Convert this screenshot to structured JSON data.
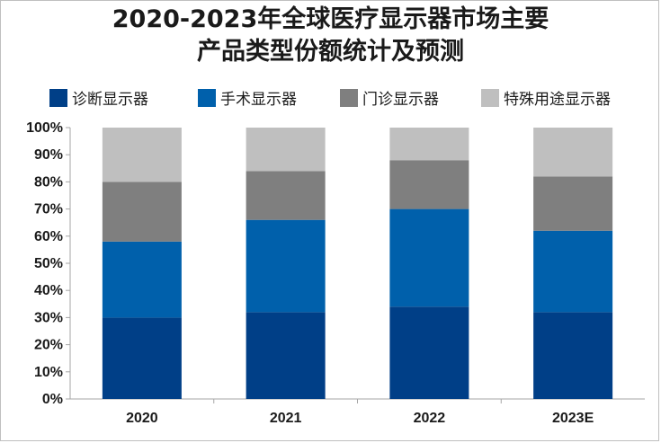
{
  "chart_data": {
    "type": "bar",
    "stacked": true,
    "title_line1": "2020-2023年全球医疗显示器市场主要",
    "title_line2": "产品类型份额统计及预测",
    "categories": [
      "2020",
      "2021",
      "2022",
      "2023E"
    ],
    "series": [
      {
        "name": "诊断显示器",
        "color": "#003f87",
        "values": [
          30,
          32,
          34,
          32
        ]
      },
      {
        "name": "手术显示器",
        "color": "#0060ab",
        "values": [
          28,
          34,
          36,
          30
        ]
      },
      {
        "name": "门诊显示器",
        "color": "#7f7f7f",
        "values": [
          22,
          18,
          18,
          20
        ]
      },
      {
        "name": "特殊用途显示器",
        "color": "#bfbfbf",
        "values": [
          20,
          16,
          12,
          18
        ]
      }
    ],
    "y_ticks": [
      "0%",
      "10%",
      "20%",
      "30%",
      "40%",
      "50%",
      "60%",
      "70%",
      "80%",
      "90%",
      "100%"
    ],
    "ylim": [
      0,
      100
    ],
    "legend_position": "top",
    "grid": false
  }
}
